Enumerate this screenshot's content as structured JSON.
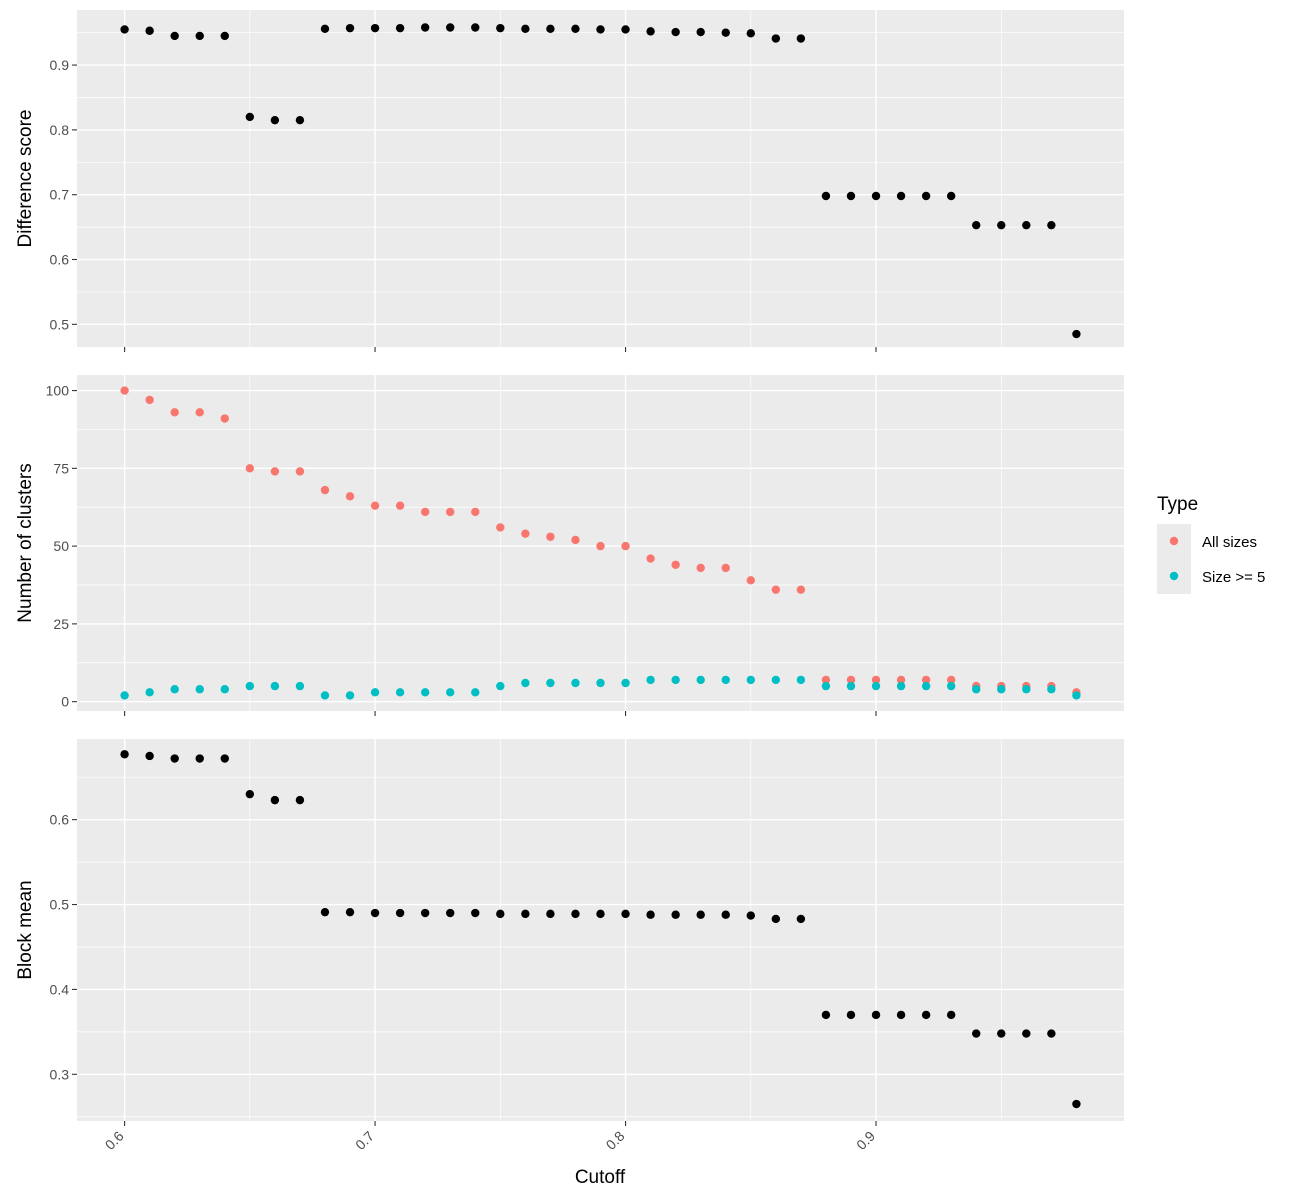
{
  "chart_data": [
    {
      "type": "scatter",
      "panel": "top",
      "ylabel": "Difference score",
      "ylim": [
        0.465,
        0.985
      ],
      "yticks": [
        0.5,
        0.6,
        0.7,
        0.8,
        0.9
      ],
      "ytick_labels": [
        "0.5",
        "0.6",
        "0.7",
        "0.8",
        "0.9"
      ],
      "xlim": [
        0.581,
        0.999
      ],
      "xticks": [
        0.6,
        0.7,
        0.8,
        0.9
      ],
      "x": [
        0.6,
        0.61,
        0.62,
        0.63,
        0.64,
        0.65,
        0.66,
        0.67,
        0.68,
        0.69,
        0.7,
        0.71,
        0.72,
        0.73,
        0.74,
        0.75,
        0.76,
        0.77,
        0.78,
        0.79,
        0.8,
        0.81,
        0.82,
        0.83,
        0.84,
        0.85,
        0.86,
        0.87,
        0.88,
        0.89,
        0.9,
        0.91,
        0.92,
        0.93,
        0.94,
        0.95,
        0.96,
        0.97,
        0.98
      ],
      "series": [
        {
          "color": "#000000",
          "values": [
            0.955,
            0.953,
            0.945,
            0.945,
            0.945,
            0.82,
            0.815,
            0.815,
            0.956,
            0.957,
            0.957,
            0.957,
            0.958,
            0.958,
            0.958,
            0.957,
            0.956,
            0.956,
            0.956,
            0.955,
            0.955,
            0.952,
            0.951,
            0.951,
            0.95,
            0.949,
            0.941,
            0.941,
            0.698,
            0.698,
            0.698,
            0.698,
            0.698,
            0.698,
            0.653,
            0.653,
            0.653,
            0.653,
            0.485
          ]
        }
      ],
      "grid": true
    },
    {
      "type": "scatter",
      "panel": "middle",
      "ylabel": "Number of clusters",
      "ylim": [
        -3,
        105
      ],
      "yticks": [
        0,
        25,
        50,
        75,
        100
      ],
      "ytick_labels": [
        "0",
        "25",
        "50",
        "75",
        "100"
      ],
      "xlim": [
        0.581,
        0.999
      ],
      "xticks": [
        0.6,
        0.7,
        0.8,
        0.9
      ],
      "x": [
        0.6,
        0.61,
        0.62,
        0.63,
        0.64,
        0.65,
        0.66,
        0.67,
        0.68,
        0.69,
        0.7,
        0.71,
        0.72,
        0.73,
        0.74,
        0.75,
        0.76,
        0.77,
        0.78,
        0.79,
        0.8,
        0.81,
        0.82,
        0.83,
        0.84,
        0.85,
        0.86,
        0.87,
        0.88,
        0.89,
        0.9,
        0.91,
        0.92,
        0.93,
        0.94,
        0.95,
        0.96,
        0.97,
        0.98
      ],
      "series": [
        {
          "name": "All sizes",
          "color": "#F8766D",
          "values": [
            100,
            97,
            93,
            93,
            91,
            75,
            74,
            74,
            68,
            66,
            63,
            63,
            61,
            61,
            61,
            56,
            54,
            53,
            52,
            50,
            50,
            46,
            44,
            43,
            43,
            39,
            36,
            36,
            7,
            7,
            7,
            7,
            7,
            7,
            5,
            5,
            5,
            5,
            3
          ]
        },
        {
          "name": "Size >= 5",
          "color": "#00BFC4",
          "values": [
            2,
            3,
            4,
            4,
            4,
            5,
            5,
            5,
            2,
            2,
            3,
            3,
            3,
            3,
            3,
            5,
            6,
            6,
            6,
            6,
            6,
            7,
            7,
            7,
            7,
            7,
            7,
            7,
            5,
            5,
            5,
            5,
            5,
            5,
            4,
            4,
            4,
            4,
            2
          ]
        }
      ],
      "legend": {
        "title": "Type",
        "position": "right",
        "entries": [
          "All sizes",
          "Size >= 5"
        ]
      },
      "grid": true
    },
    {
      "type": "scatter",
      "panel": "bottom",
      "ylabel": "Block mean",
      "xlabel": "Cutoff",
      "ylim": [
        0.245,
        0.695
      ],
      "yticks": [
        0.3,
        0.4,
        0.5,
        0.6
      ],
      "ytick_labels": [
        "0.3",
        "0.4",
        "0.5",
        "0.6"
      ],
      "xlim": [
        0.581,
        0.999
      ],
      "xticks": [
        0.6,
        0.7,
        0.8,
        0.9
      ],
      "xtick_labels": [
        "0.6",
        "0.7",
        "0.8",
        "0.9"
      ],
      "x": [
        0.6,
        0.61,
        0.62,
        0.63,
        0.64,
        0.65,
        0.66,
        0.67,
        0.68,
        0.69,
        0.7,
        0.71,
        0.72,
        0.73,
        0.74,
        0.75,
        0.76,
        0.77,
        0.78,
        0.79,
        0.8,
        0.81,
        0.82,
        0.83,
        0.84,
        0.85,
        0.86,
        0.87,
        0.88,
        0.89,
        0.9,
        0.91,
        0.92,
        0.93,
        0.94,
        0.95,
        0.96,
        0.97,
        0.98
      ],
      "series": [
        {
          "color": "#000000",
          "values": [
            0.677,
            0.675,
            0.672,
            0.672,
            0.672,
            0.63,
            0.623,
            0.623,
            0.491,
            0.491,
            0.49,
            0.49,
            0.49,
            0.49,
            0.49,
            0.489,
            0.489,
            0.489,
            0.489,
            0.489,
            0.489,
            0.488,
            0.488,
            0.488,
            0.488,
            0.487,
            0.483,
            0.483,
            0.37,
            0.37,
            0.37,
            0.37,
            0.37,
            0.37,
            0.348,
            0.348,
            0.348,
            0.348,
            0.265
          ]
        }
      ],
      "grid": true
    }
  ]
}
